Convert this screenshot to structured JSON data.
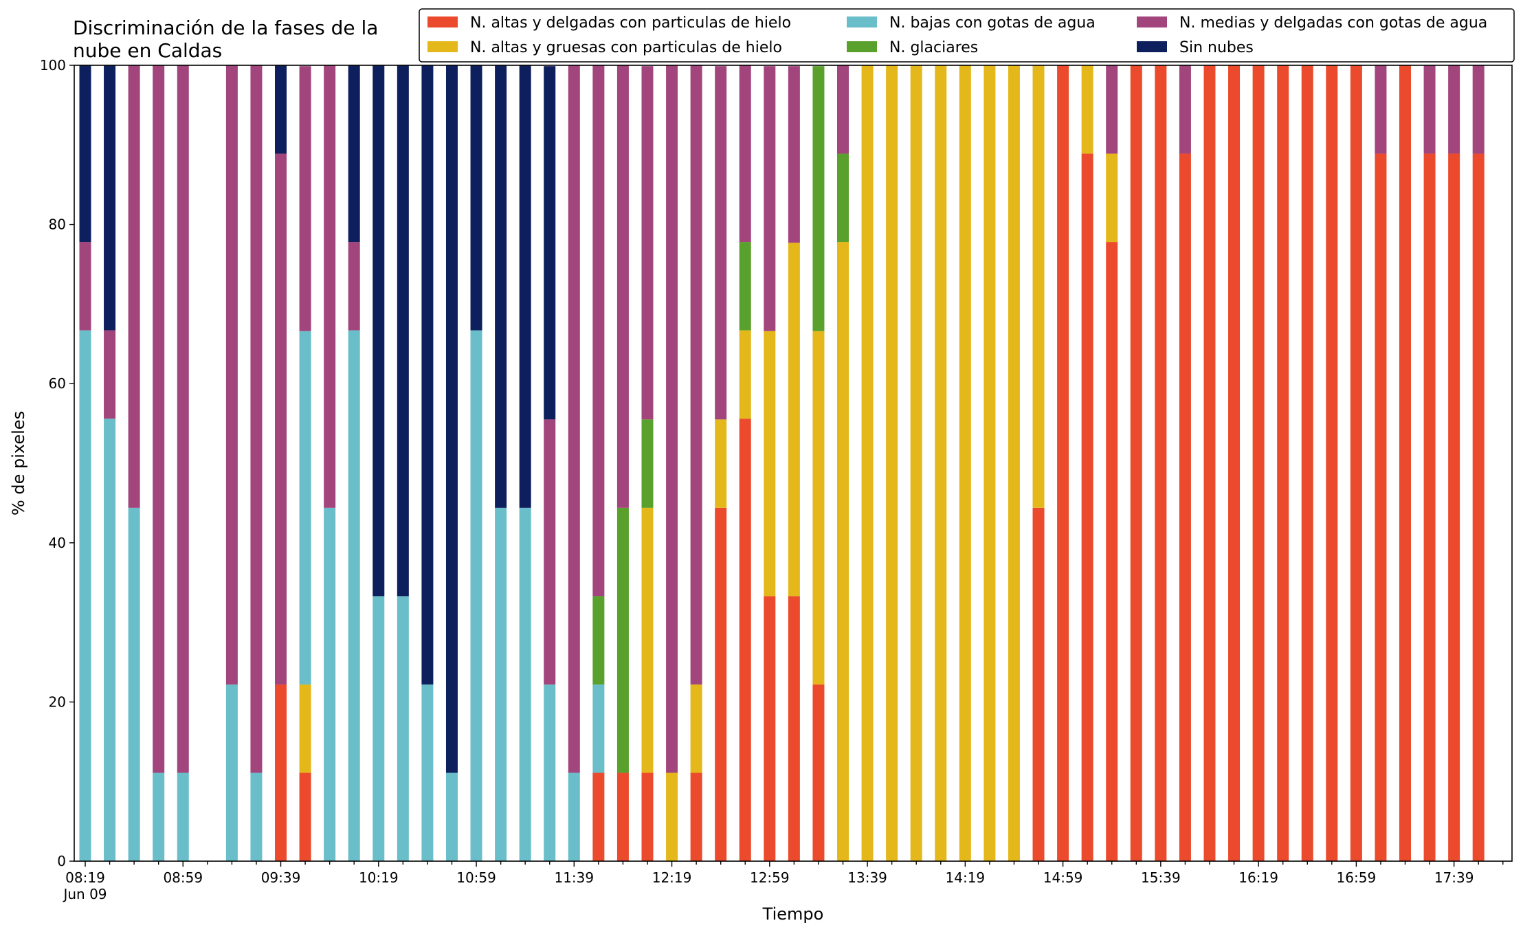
{
  "chart_data": {
    "type": "bar",
    "stacked": true,
    "title": "Discriminación de la fases de la\nnube en Caldas",
    "xlabel": "Tiempo",
    "ylabel": "% de pixeles",
    "ylim": [
      0,
      100
    ],
    "yticks": [
      0,
      20,
      40,
      60,
      80,
      100
    ],
    "grid": false,
    "legend_position": "top-right",
    "legend_columns": 3,
    "bar_interval_minutes": 10,
    "x": [
      "08:19",
      "08:29",
      "08:39",
      "08:49",
      "08:59",
      "09:09",
      "09:19",
      "09:29",
      "09:39",
      "09:49",
      "09:59",
      "10:09",
      "10:19",
      "10:29",
      "10:39",
      "10:49",
      "10:59",
      "11:09",
      "11:19",
      "11:29",
      "11:39",
      "11:49",
      "11:59",
      "12:09",
      "12:19",
      "12:29",
      "12:39",
      "12:49",
      "12:59",
      "13:09",
      "13:19",
      "13:29",
      "13:39",
      "13:49",
      "13:59",
      "14:09",
      "14:19",
      "14:29",
      "14:39",
      "14:49",
      "14:59",
      "15:09",
      "15:19",
      "15:29",
      "15:39",
      "15:49",
      "15:59",
      "16:09",
      "16:19",
      "16:29",
      "16:39",
      "16:49",
      "16:59",
      "17:09",
      "17:19",
      "17:29",
      "17:39",
      "17:49"
    ],
    "x_tick_labels": [
      "08:19",
      "08:59",
      "09:39",
      "10:19",
      "10:59",
      "11:39",
      "12:19",
      "12:59",
      "13:39",
      "14:19",
      "14:59",
      "15:39",
      "16:19",
      "16:59",
      "17:39"
    ],
    "x_secondary_label": "Jun 09",
    "series": [
      {
        "name": "N. altas y delgadas con particulas de hielo",
        "color": "#ec4a2c",
        "values": [
          0,
          0,
          0,
          0,
          0,
          0,
          0,
          0,
          22.2,
          11.1,
          0,
          0,
          0,
          0,
          0,
          0,
          0,
          0,
          0,
          0,
          0,
          11.1,
          11.1,
          11.1,
          0,
          11.1,
          44.4,
          55.6,
          33.3,
          33.3,
          22.2,
          0,
          0,
          0,
          0,
          0,
          0,
          0,
          0,
          44.4,
          100,
          88.9,
          77.8,
          100,
          100,
          88.9,
          100,
          100,
          100,
          100,
          100,
          100,
          100,
          88.9,
          100,
          88.9,
          88.9,
          88.9
        ]
      },
      {
        "name": "N. altas y gruesas con particulas de hielo",
        "color": "#e4b81b",
        "values": [
          0,
          0,
          0,
          0,
          0,
          0,
          0,
          0,
          0,
          11.1,
          0,
          0,
          0,
          0,
          0,
          0,
          0,
          0,
          0,
          0,
          0,
          0,
          0,
          33.3,
          11.1,
          11.1,
          11.1,
          11.1,
          33.3,
          44.4,
          44.4,
          77.8,
          100,
          100,
          100,
          100,
          100,
          100,
          100,
          55.6,
          0,
          11.1,
          11.1,
          0,
          0,
          0,
          0,
          0,
          0,
          0,
          0,
          0,
          0,
          0,
          0,
          0,
          0,
          0
        ]
      },
      {
        "name": "N. bajas con gotas de agua",
        "color": "#69bec9",
        "values": [
          66.7,
          55.6,
          44.4,
          11.1,
          11.1,
          0,
          22.2,
          11.1,
          0,
          44.4,
          44.4,
          66.7,
          33.3,
          33.3,
          22.2,
          11.1,
          66.7,
          44.4,
          44.4,
          22.2,
          11.1,
          11.1,
          0,
          0,
          0,
          0,
          0,
          0,
          0,
          0,
          0,
          0,
          0,
          0,
          0,
          0,
          0,
          0,
          0,
          0,
          0,
          0,
          0,
          0,
          0,
          0,
          0,
          0,
          0,
          0,
          0,
          0,
          0,
          0,
          0,
          0,
          0,
          0
        ]
      },
      {
        "name": "N. glaciares",
        "color": "#5aa02c",
        "values": [
          0,
          0,
          0,
          0,
          0,
          0,
          0,
          0,
          0,
          0,
          0,
          0,
          0,
          0,
          0,
          0,
          0,
          0,
          0,
          0,
          0,
          11.1,
          33.3,
          11.1,
          0,
          0,
          0,
          11.1,
          0,
          0,
          33.3,
          11.1,
          0,
          0,
          0,
          0,
          0,
          0,
          0,
          0,
          0,
          0,
          0,
          0,
          0,
          0,
          0,
          0,
          0,
          0,
          0,
          0,
          0,
          0,
          0,
          0,
          0,
          0
        ]
      },
      {
        "name": "N. medias y delgadas con gotas de agua",
        "color": "#a2457c",
        "values": [
          11.1,
          11.1,
          55.6,
          88.9,
          88.9,
          0,
          77.8,
          88.9,
          66.7,
          33.3,
          55.6,
          11.1,
          0,
          0,
          0,
          0,
          0,
          0,
          0,
          33.3,
          88.9,
          66.7,
          55.6,
          44.4,
          88.9,
          77.8,
          44.4,
          22.2,
          33.3,
          22.2,
          0,
          11.1,
          0,
          0,
          0,
          0,
          0,
          0,
          0,
          0,
          0,
          0,
          11.1,
          0,
          0,
          11.1,
          0,
          0,
          0,
          0,
          0,
          0,
          0,
          11.1,
          0,
          11.1,
          11.1,
          11.1
        ]
      },
      {
        "name": "Sin nubes",
        "color": "#0d1f5c",
        "values": [
          22.2,
          33.3,
          0,
          0,
          0,
          0,
          0,
          0,
          11.1,
          0,
          0,
          22.2,
          66.7,
          66.7,
          77.8,
          88.9,
          33.3,
          55.6,
          55.6,
          44.4,
          0,
          0,
          0,
          0,
          0,
          0,
          0,
          0,
          0,
          0,
          0,
          0,
          0,
          0,
          0,
          0,
          0,
          0,
          0,
          0,
          0,
          0,
          0,
          0,
          0,
          0,
          0,
          0,
          0,
          0,
          0,
          0,
          0,
          0,
          0,
          0,
          0,
          0
        ]
      }
    ]
  }
}
